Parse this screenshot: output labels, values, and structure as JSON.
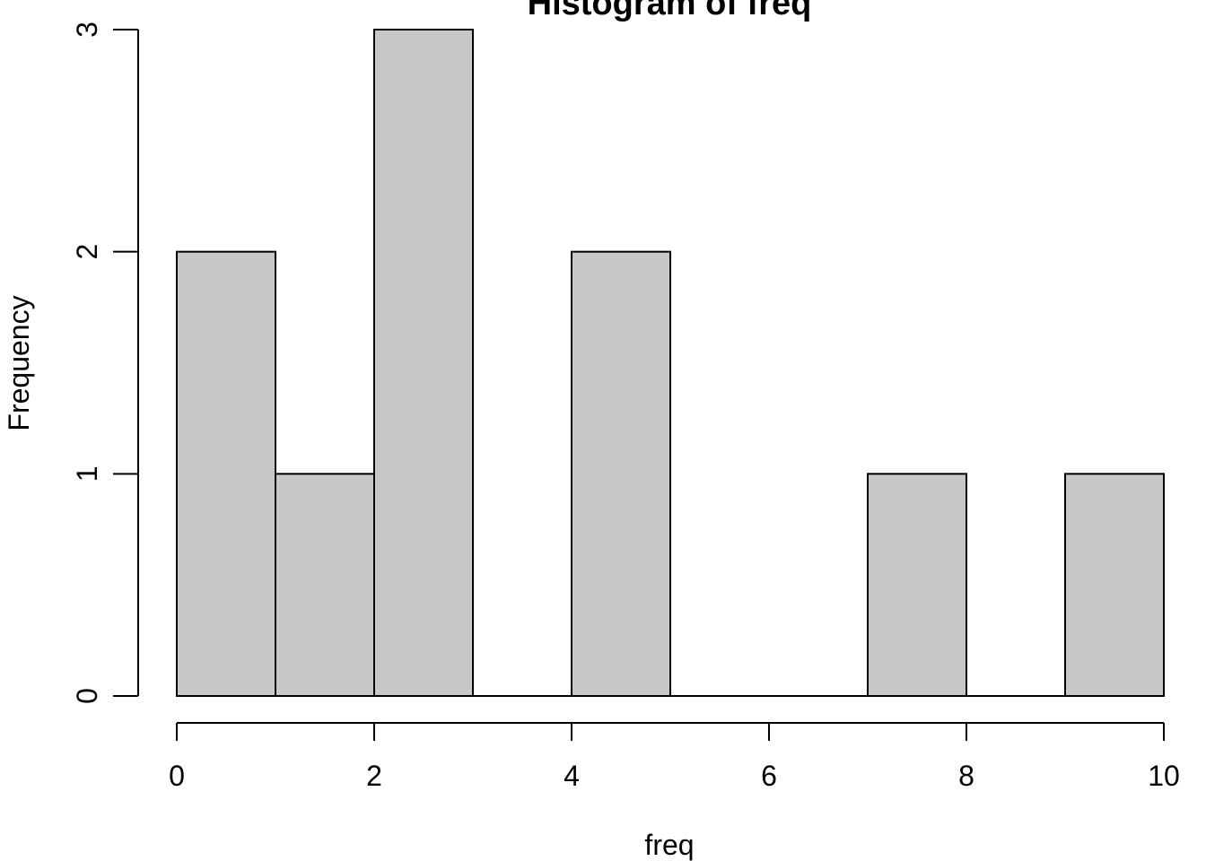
{
  "chart_data": {
    "type": "bar",
    "title": "Histogram of freq",
    "xlabel": "freq",
    "ylabel": "Frequency",
    "bins": [
      {
        "start": 0,
        "end": 1,
        "count": 2
      },
      {
        "start": 1,
        "end": 2,
        "count": 1
      },
      {
        "start": 2,
        "end": 3,
        "count": 3
      },
      {
        "start": 3,
        "end": 4,
        "count": 0
      },
      {
        "start": 4,
        "end": 5,
        "count": 2
      },
      {
        "start": 5,
        "end": 6,
        "count": 0
      },
      {
        "start": 6,
        "end": 7,
        "count": 0
      },
      {
        "start": 7,
        "end": 8,
        "count": 1
      },
      {
        "start": 8,
        "end": 9,
        "count": 0
      },
      {
        "start": 9,
        "end": 10,
        "count": 1
      }
    ],
    "xlim": [
      0,
      10
    ],
    "ylim": [
      0,
      3
    ],
    "x_ticks": [
      "0",
      "2",
      "4",
      "6",
      "8",
      "10"
    ],
    "y_ticks": [
      "0",
      "1",
      "2",
      "3"
    ],
    "bar_color": "#c8c8c8",
    "edge_color": "#000000",
    "grid": false,
    "legend": "none"
  }
}
